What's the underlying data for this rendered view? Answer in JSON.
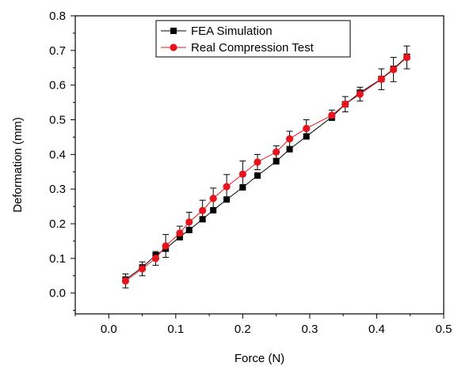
{
  "chart_data": {
    "type": "scatter",
    "xlabel": "Force (N)",
    "ylabel": "Deformation (mm)",
    "xlim": [
      -0.05,
      0.5
    ],
    "ylim": [
      -0.06,
      0.8
    ],
    "xticks": [
      0.0,
      0.1,
      0.2,
      0.3,
      0.4,
      0.5
    ],
    "yticks": [
      0.0,
      0.1,
      0.2,
      0.3,
      0.4,
      0.5,
      0.6,
      0.7,
      0.8
    ],
    "xtick_labels": [
      "0.0",
      "0.1",
      "0.2",
      "0.3",
      "0.4",
      "0.5"
    ],
    "ytick_labels": [
      "0.0",
      "0.1",
      "0.2",
      "0.3",
      "0.4",
      "0.5",
      "0.6",
      "0.7",
      "0.8"
    ],
    "legend_position": "top-center",
    "grid": false,
    "series": [
      {
        "name": "FEA Simulation",
        "marker": "square",
        "color": "#000000",
        "x": [
          0.025,
          0.05,
          0.07,
          0.085,
          0.106,
          0.12,
          0.14,
          0.156,
          0.176,
          0.2,
          0.222,
          0.25,
          0.27,
          0.295,
          0.333,
          0.353,
          0.375,
          0.407,
          0.425,
          0.445
        ],
        "y": [
          0.039,
          0.074,
          0.109,
          0.128,
          0.162,
          0.182,
          0.213,
          0.239,
          0.27,
          0.305,
          0.339,
          0.38,
          0.415,
          0.452,
          0.508,
          0.545,
          0.578,
          0.618,
          0.647,
          0.682
        ],
        "err": [
          0.0,
          0.0,
          0.0,
          0.0,
          0.0,
          0.0,
          0.0,
          0.0,
          0.0,
          0.0,
          0.0,
          0.0,
          0.0,
          0.0,
          0.0,
          0.0,
          0.0,
          0.0,
          0.0,
          0.0
        ]
      },
      {
        "name": "Real Compression Test",
        "marker": "circle",
        "color": "#e8141c",
        "x": [
          0.025,
          0.05,
          0.07,
          0.085,
          0.106,
          0.12,
          0.14,
          0.156,
          0.176,
          0.2,
          0.222,
          0.25,
          0.27,
          0.295,
          0.333,
          0.353,
          0.375,
          0.407,
          0.425,
          0.445
        ],
        "y": [
          0.035,
          0.07,
          0.1,
          0.136,
          0.173,
          0.205,
          0.238,
          0.273,
          0.307,
          0.343,
          0.378,
          0.407,
          0.445,
          0.475,
          0.513,
          0.545,
          0.574,
          0.617,
          0.645,
          0.68
        ],
        "err": [
          0.02,
          0.02,
          0.02,
          0.033,
          0.02,
          0.028,
          0.03,
          0.03,
          0.035,
          0.038,
          0.022,
          0.018,
          0.022,
          0.025,
          0.015,
          0.022,
          0.02,
          0.03,
          0.035,
          0.033
        ]
      }
    ]
  }
}
